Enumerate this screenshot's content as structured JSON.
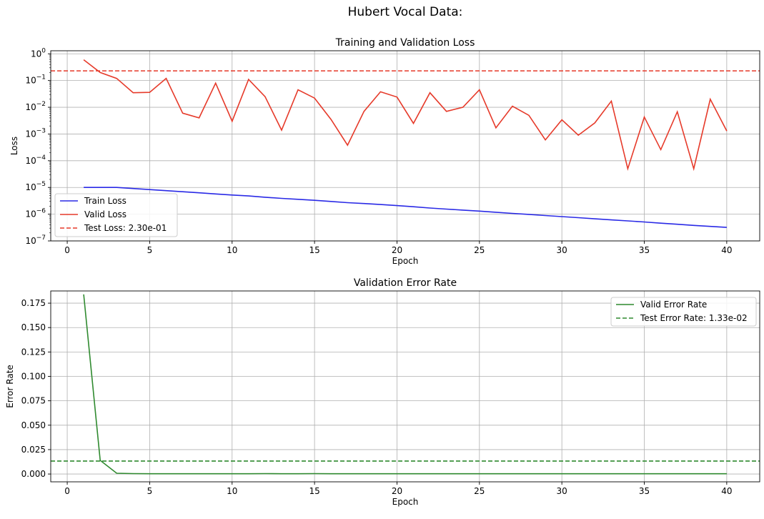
{
  "figure": {
    "suptitle": "Hubert Vocal Data:"
  },
  "colors": {
    "train": "#2a2ae6",
    "valid": "#e63a2a",
    "test_loss": "#e63a2a",
    "valid_err": "#2f8a2f",
    "test_err": "#2f8a2f",
    "grid": "#b0b0b0"
  },
  "chart_data": [
    {
      "type": "line",
      "title": "Training and Validation Loss",
      "xlabel": "Epoch",
      "ylabel": "Loss",
      "yscale": "log",
      "xlim": [
        -1,
        42
      ],
      "ylim": [
        1e-07,
        1.3
      ],
      "xticks": [
        0,
        5,
        10,
        15,
        20,
        25,
        30,
        35,
        40
      ],
      "yticks": [
        {
          "exp": -7
        },
        {
          "exp": -6
        },
        {
          "exp": -5
        },
        {
          "exp": -4
        },
        {
          "exp": -3
        },
        {
          "exp": -2
        },
        {
          "exp": -1
        },
        {
          "exp": 0
        }
      ],
      "grid": true,
      "legend_loc": "lower-left",
      "series": [
        {
          "name": "Train Loss",
          "color": "#2a2ae6",
          "x": [
            1,
            2,
            3,
            4,
            5,
            6,
            7,
            8,
            9,
            10,
            11,
            12,
            13,
            14,
            15,
            16,
            17,
            18,
            19,
            20,
            21,
            22,
            23,
            24,
            25,
            26,
            27,
            28,
            29,
            30,
            31,
            32,
            33,
            34,
            35,
            36,
            37,
            38,
            39,
            40
          ],
          "y": [
            1e-05,
            1e-05,
            1e-05,
            9.1e-06,
            8.3e-06,
            7.6e-06,
            6.9e-06,
            6.3e-06,
            5.7e-06,
            5.2e-06,
            4.8e-06,
            4.3e-06,
            3.9e-06,
            3.6e-06,
            3.3e-06,
            3e-06,
            2.7e-06,
            2.5e-06,
            2.3e-06,
            2.1e-06,
            1.9e-06,
            1.7e-06,
            1.55e-06,
            1.42e-06,
            1.3e-06,
            1.18e-06,
            1.07e-06,
            9.8e-07,
            8.9e-07,
            8.1e-07,
            7.4e-07,
            6.7e-07,
            6.1e-07,
            5.6e-07,
            5.1e-07,
            4.6e-07,
            4.2e-07,
            3.8e-07,
            3.5e-07,
            3.2e-07
          ]
        },
        {
          "name": "Valid Loss",
          "color": "#e63a2a",
          "x": [
            1,
            2,
            3,
            4,
            5,
            6,
            7,
            8,
            9,
            10,
            11,
            12,
            13,
            14,
            15,
            16,
            17,
            18,
            19,
            20,
            21,
            22,
            23,
            24,
            25,
            26,
            27,
            28,
            29,
            30,
            31,
            32,
            33,
            34,
            35,
            36,
            37,
            38,
            39,
            40
          ],
          "y": [
            0.6,
            0.2,
            0.12,
            0.035,
            0.036,
            0.12,
            0.006,
            0.004,
            0.08,
            0.003,
            0.11,
            0.025,
            0.0014,
            0.045,
            0.022,
            0.0035,
            0.00038,
            0.007,
            0.038,
            0.024,
            0.0025,
            0.035,
            0.007,
            0.01,
            0.045,
            0.0017,
            0.011,
            0.005,
            0.0006,
            0.0034,
            0.0009,
            0.0026,
            0.017,
            5e-05,
            0.0043,
            0.00026,
            0.0068,
            5e-05,
            0.02,
            0.0013
          ]
        }
      ],
      "hlines": [
        {
          "name": "Test Loss: 2.30e-01",
          "value": 0.23,
          "color": "#e63a2a",
          "dash": true
        }
      ]
    },
    {
      "type": "line",
      "title": "Validation Error Rate",
      "xlabel": "Epoch",
      "ylabel": "Error Rate",
      "yscale": "linear",
      "xlim": [
        -1,
        42
      ],
      "ylim": [
        -0.008,
        0.1875
      ],
      "xticks": [
        0,
        5,
        10,
        15,
        20,
        25,
        30,
        35,
        40
      ],
      "yticks": [
        0.0,
        0.025,
        0.05,
        0.075,
        0.1,
        0.125,
        0.15,
        0.175
      ],
      "ytick_labels": [
        "0.000",
        "0.025",
        "0.050",
        "0.075",
        "0.100",
        "0.125",
        "0.150",
        "0.175"
      ],
      "grid": true,
      "legend_loc": "upper-right",
      "series": [
        {
          "name": "Valid Error Rate",
          "color": "#2f8a2f",
          "x": [
            1,
            2,
            3,
            4,
            5,
            6,
            7,
            8,
            9,
            10,
            11,
            12,
            13,
            14,
            15,
            16,
            17,
            18,
            19,
            20,
            21,
            22,
            23,
            24,
            25,
            26,
            27,
            28,
            29,
            30,
            31,
            32,
            33,
            34,
            35,
            36,
            37,
            38,
            39,
            40
          ],
          "y": [
            0.184,
            0.014,
            0.0008,
            0.0004,
            0.0003,
            0.0003,
            0.0003,
            0.0003,
            0.0003,
            0.0003,
            0.0003,
            0.0004,
            0.0003,
            0.0003,
            0.0004,
            0.0003,
            0.0003,
            0.0003,
            0.0003,
            0.0003,
            0.0003,
            0.0003,
            0.0003,
            0.0003,
            0.0003,
            0.0003,
            0.0003,
            0.0003,
            0.0003,
            0.0003,
            0.0003,
            0.0003,
            0.0003,
            0.0003,
            0.0003,
            0.0003,
            0.0003,
            0.0003,
            0.0003,
            0.0003
          ]
        }
      ],
      "hlines": [
        {
          "name": "Test Error Rate: 1.33e-02",
          "value": 0.0133,
          "color": "#2f8a2f",
          "dash": true
        }
      ]
    }
  ]
}
